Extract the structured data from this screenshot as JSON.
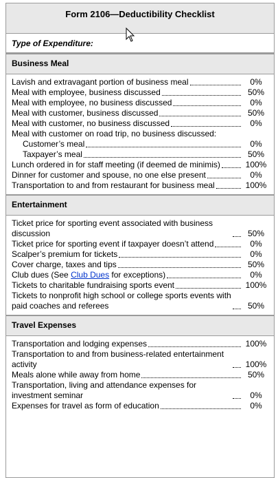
{
  "title": "Form 2106—Deductibility Checklist",
  "column_header": "Type of Expenditure:",
  "sections": [
    {
      "name": "Business Meal",
      "items": [
        {
          "label": "Lavish and extravagant portion of business meal",
          "value": "0%"
        },
        {
          "label": "Meal with employee, business discussed",
          "value": "50%"
        },
        {
          "label": "Meal with employee, no business discussed",
          "value": "0%"
        },
        {
          "label": "Meal with customer, business discussed",
          "value": "50%"
        },
        {
          "label": "Meal with customer, no business discussed",
          "value": "0%"
        },
        {
          "label": "Meal with customer on road trip, no business discussed:",
          "subitems": [
            {
              "label": "Customer’s meal",
              "value": "0%"
            },
            {
              "label": "Taxpayer’s meal",
              "value": "50%"
            }
          ]
        },
        {
          "label": "Lunch ordered in for staff meeting (if deemed de minimis)",
          "value": "100%"
        },
        {
          "label": "Dinner for customer and spouse, no one else present",
          "value": "0%"
        },
        {
          "label": "Transportation to and from restaurant for business meal",
          "value": "100%"
        }
      ]
    },
    {
      "name": "Entertainment",
      "items": [
        {
          "label": "Ticket price for sporting event associated with business discussion",
          "value": "50%"
        },
        {
          "label": "Ticket price for sporting event if taxpayer doesn’t attend",
          "value": "0%"
        },
        {
          "label": "Scalper’s premium for tickets",
          "value": "0%"
        },
        {
          "label": "Cover charge, taxes and tips",
          "value": "50%"
        },
        {
          "label": "Club dues (See ",
          "link": "Club Dues",
          "label_end": " for exceptions)",
          "value": "0%"
        },
        {
          "label": "Tickets to charitable fundraising sports event",
          "value": "100%"
        },
        {
          "label": "Tickets to nonprofit high school or college sports events with paid coaches and referees",
          "value": "50%"
        }
      ]
    },
    {
      "name": "Travel Expenses",
      "items": [
        {
          "label": "Transportation and lodging expenses",
          "value": "100%"
        },
        {
          "label": "Transportation to and from business-related entertainment activity",
          "value": "100%"
        },
        {
          "label": "Meals alone while away from home",
          "value": "50%"
        },
        {
          "label": "Transportation, living and attendance expenses for investment seminar",
          "value": "0%"
        },
        {
          "label": "Expenses for travel as form of education",
          "value": "0%"
        }
      ]
    }
  ]
}
